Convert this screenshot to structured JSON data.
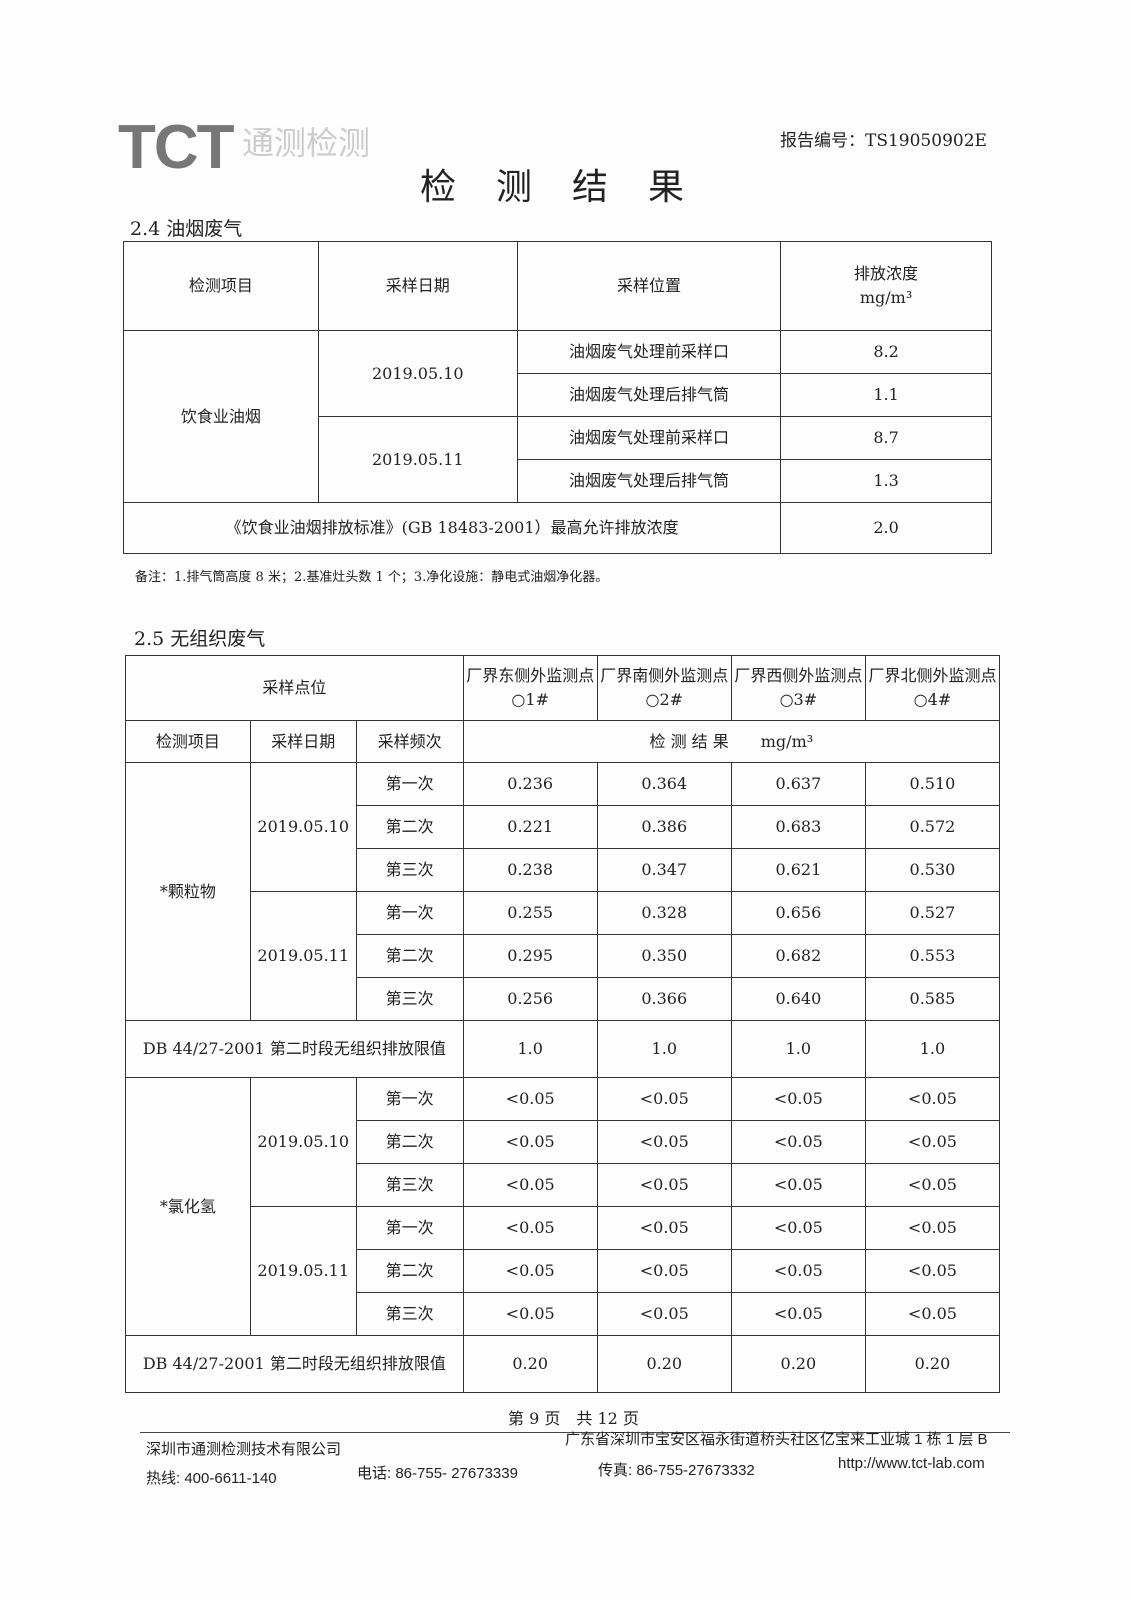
{
  "header": {
    "logo_text": "TCT",
    "logo_cn": "通测检测",
    "report_no": "报告编号：TS19050902E",
    "title": "检测结果"
  },
  "s24": {
    "title": "2.4 油烟废气",
    "headers": [
      "检测项目",
      "采样日期",
      "采样位置",
      "排放浓度",
      "mg/m³"
    ],
    "item": "饮食业油烟",
    "groups": [
      {
        "date": "2019.05.10",
        "rows": [
          {
            "pos": "油烟废气处理前采样口",
            "val": "8.2"
          },
          {
            "pos": "油烟废气处理后排气筒",
            "val": "1.1"
          }
        ]
      },
      {
        "date": "2019.05.11",
        "rows": [
          {
            "pos": "油烟废气处理前采样口",
            "val": "8.7"
          },
          {
            "pos": "油烟废气处理后排气筒",
            "val": "1.3"
          }
        ]
      }
    ],
    "standard": "《饮食业油烟排放标准》(GB 18483-2001）最高允许排放浓度",
    "standard_val": "2.0",
    "note": "备注：1.排气筒高度 8 米；2.基准灶头数 1 个；3.净化设施：静电式油烟净化器。"
  },
  "s25": {
    "title": "2.5 无组织废气",
    "h_point": "采样点位",
    "points": [
      "厂界东侧外监测点○1#",
      "厂界南侧外监测点○2#",
      "厂界西侧外监测点○3#",
      "厂界北侧外监测点○4#"
    ],
    "h_item": "检测项目",
    "h_date": "采样日期",
    "h_freq": "采样频次",
    "h_result": "检 测 结 果　　mg/m³",
    "blocks": [
      {
        "item": "*颗粒物",
        "groups": [
          {
            "date": "2019.05.10",
            "rows": [
              [
                "第一次",
                "0.236",
                "0.364",
                "0.637",
                "0.510"
              ],
              [
                "第二次",
                "0.221",
                "0.386",
                "0.683",
                "0.572"
              ],
              [
                "第三次",
                "0.238",
                "0.347",
                "0.621",
                "0.530"
              ]
            ]
          },
          {
            "date": "2019.05.11",
            "rows": [
              [
                "第一次",
                "0.255",
                "0.328",
                "0.656",
                "0.527"
              ],
              [
                "第二次",
                "0.295",
                "0.350",
                "0.682",
                "0.553"
              ],
              [
                "第三次",
                "0.256",
                "0.366",
                "0.640",
                "0.585"
              ]
            ]
          }
        ],
        "standard": "DB 44/27-2001 第二时段无组织排放限值",
        "limits": [
          "1.0",
          "1.0",
          "1.0",
          "1.0"
        ]
      },
      {
        "item": "*氯化氢",
        "groups": [
          {
            "date": "2019.05.10",
            "rows": [
              [
                "第一次",
                "<0.05",
                "<0.05",
                "<0.05",
                "<0.05"
              ],
              [
                "第二次",
                "<0.05",
                "<0.05",
                "<0.05",
                "<0.05"
              ],
              [
                "第三次",
                "<0.05",
                "<0.05",
                "<0.05",
                "<0.05"
              ]
            ]
          },
          {
            "date": "2019.05.11",
            "rows": [
              [
                "第一次",
                "<0.05",
                "<0.05",
                "<0.05",
                "<0.05"
              ],
              [
                "第二次",
                "<0.05",
                "<0.05",
                "<0.05",
                "<0.05"
              ],
              [
                "第三次",
                "<0.05",
                "<0.05",
                "<0.05",
                "<0.05"
              ]
            ]
          }
        ],
        "standard": "DB 44/27-2001 第二时段无组织排放限值",
        "limits": [
          "0.20",
          "0.20",
          "0.20",
          "0.20"
        ]
      }
    ]
  },
  "footer": {
    "page": "第 9 页　共 12 页",
    "company": "深圳市通测检测技术有限公司",
    "address": "广东省深圳市宝安区福永街道桥头社区亿宝来工业城 1 栋 1 层 B",
    "hotline": "热线: 400-6611-140",
    "tel": "电话: 86-755- 27673339",
    "fax": "传真: 86-755-27673332",
    "web": "http://www.tct-lab.com"
  }
}
